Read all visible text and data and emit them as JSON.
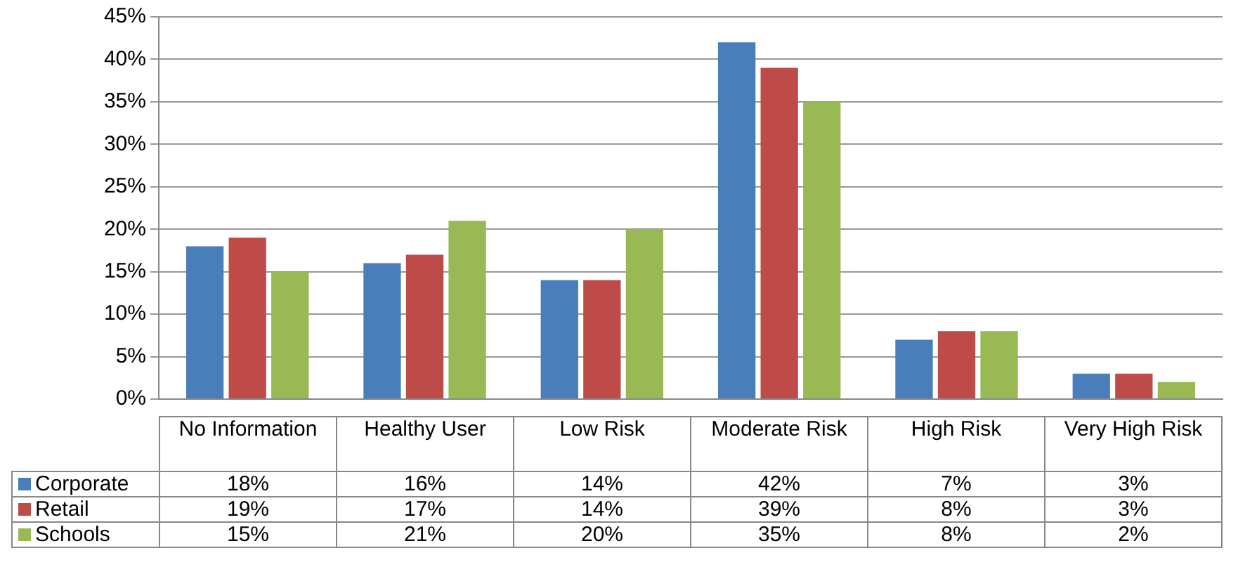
{
  "chart_data": {
    "type": "bar",
    "categories": [
      "No Information",
      "Healthy User",
      "Low Risk",
      "Moderate Risk",
      "High Risk",
      "Very High Risk"
    ],
    "series": [
      {
        "name": "Corporate",
        "color": "#4a7ebb",
        "values": [
          18,
          16,
          14,
          42,
          7,
          3
        ],
        "value_labels": [
          "18%",
          "16%",
          "14%",
          "42%",
          "7%",
          "3%"
        ]
      },
      {
        "name": "Retail",
        "color": "#be4b48",
        "values": [
          19,
          17,
          14,
          39,
          8,
          3
        ],
        "value_labels": [
          "19%",
          "17%",
          "14%",
          "39%",
          "8%",
          "3%"
        ]
      },
      {
        "name": "Schools",
        "color": "#98b954",
        "values": [
          15,
          21,
          20,
          35,
          8,
          2
        ],
        "value_labels": [
          "15%",
          "21%",
          "20%",
          "35%",
          "8%",
          "2%"
        ]
      }
    ],
    "ylim": [
      0,
      45
    ],
    "yticks": [
      {
        "value": 0,
        "label": "0%"
      },
      {
        "value": 5,
        "label": "5%"
      },
      {
        "value": 10,
        "label": "10%"
      },
      {
        "value": 15,
        "label": "15%"
      },
      {
        "value": 20,
        "label": "20%"
      },
      {
        "value": 25,
        "label": "25%"
      },
      {
        "value": 30,
        "label": "30%"
      },
      {
        "value": 35,
        "label": "35%"
      },
      {
        "value": 40,
        "label": "40%"
      },
      {
        "value": 45,
        "label": "45%"
      }
    ],
    "grid": "y",
    "legend": "bottom left",
    "tick_labels": "y"
  }
}
